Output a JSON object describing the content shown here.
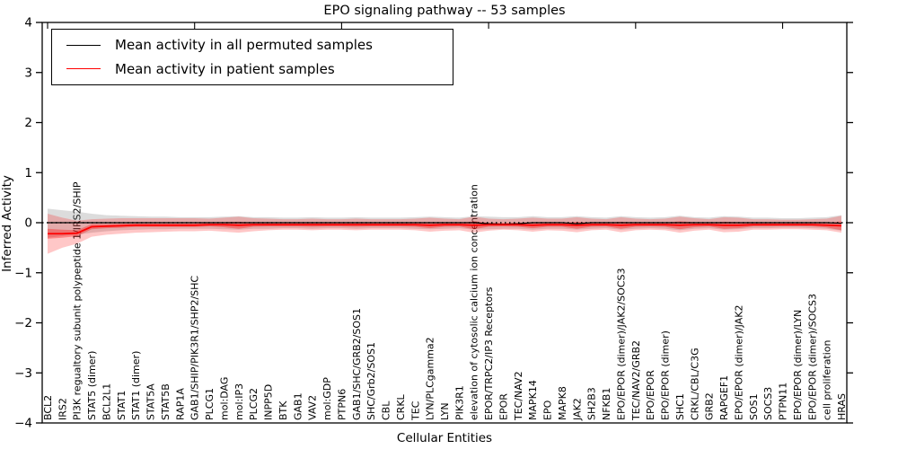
{
  "figure": {
    "title": "EPO signaling pathway -- 53 samples",
    "xlabel": "Cellular Entities",
    "ylabel": "Inferred Activity"
  },
  "legend": {
    "entries": [
      {
        "label": "Mean activity in all permuted samples",
        "color": "#000000"
      },
      {
        "label": "Mean activity in patient samples",
        "color": "#ff0000"
      }
    ]
  },
  "chart_data": {
    "type": "line",
    "title": "EPO signaling pathway -- 53 samples",
    "xlabel": "Cellular Entities",
    "ylabel": "Inferred Activity",
    "ylim": [
      -4,
      4
    ],
    "grid": false,
    "legend_position": "upper left",
    "yticks": [
      {
        "v": 4,
        "label": "4"
      },
      {
        "v": 3,
        "label": "3"
      },
      {
        "v": 2,
        "label": "2"
      },
      {
        "v": 1,
        "label": "1"
      },
      {
        "v": 0,
        "label": "0"
      },
      {
        "v": -1,
        "label": "−1"
      },
      {
        "v": -2,
        "label": "−2"
      },
      {
        "v": -3,
        "label": "−3"
      },
      {
        "v": -4,
        "label": "−4"
      }
    ],
    "categories": [
      "BCL2",
      "IRS2",
      "PI3K regualtory subunit polypeptide 1/IRS2/SHIP",
      "STAT5 (dimer)",
      "BCL2L1",
      "STAT1",
      "STAT1 (dimer)",
      "STAT5A",
      "STAT5B",
      "RAP1A",
      "GAB1/SHIP/PIK3R1/SHP2/SHC",
      "PLCG1",
      "mol:DAG",
      "mol:IP3",
      "PLCG2",
      "INPP5D",
      "BTK",
      "GAB1",
      "VAV2",
      "mol:GDP",
      "PTPN6",
      "GAB1/SHC/GRB2/SOS1",
      "SHC/Grb2/SOS1",
      "CBL",
      "CRKL",
      "TEC",
      "LYN/PLCgamma2",
      "LYN",
      "PIK3R1",
      "elevation of cytosolic calcium ion concentration",
      "EPOR/TRPC2/IP3 Receptors",
      "EPOR",
      "TEC/NAV2",
      "MAPK14",
      "EPO",
      "MAPK8",
      "JAK2",
      "SH2B3",
      "NFKB1",
      "EPO/EPOR (dimer)/JAK2/SOCS3",
      "TEC/NAV2/GRB2",
      "EPO/EPOR",
      "EPO/EPOR (dimer)",
      "SHC1",
      "CRKL/CBL/C3G",
      "GRB2",
      "RAPGEF1",
      "EPO/EPOR (dimer)/JAK2",
      "SOS1",
      "SOCS3",
      "PTPN11",
      "EPO/EPOR (dimer)/LYN",
      "EPO/EPOR (dimer)/SOCS3",
      "cell proliferation",
      "HRAS"
    ],
    "series": [
      {
        "name": "Mean activity in all permuted samples",
        "color": "#000000",
        "values": [
          0,
          0,
          0,
          0,
          0,
          0,
          0,
          0,
          0,
          0,
          0,
          0,
          0,
          0,
          0,
          0,
          0,
          0,
          0,
          0,
          0,
          0,
          0,
          0,
          0,
          0,
          0,
          0,
          0,
          0,
          -0.02,
          -0.03,
          -0.02,
          0,
          0,
          0,
          -0.02,
          0,
          0,
          0,
          0,
          0,
          0,
          0,
          0,
          0,
          0,
          0,
          0,
          0,
          0,
          0,
          0,
          0,
          -0.01
        ]
      },
      {
        "name": "Mean activity in patient samples",
        "color": "#ff0000",
        "values": [
          -0.22,
          -0.22,
          -0.21,
          -0.08,
          -0.07,
          -0.06,
          -0.05,
          -0.05,
          -0.05,
          -0.05,
          -0.05,
          -0.04,
          -0.04,
          -0.05,
          -0.04,
          -0.04,
          -0.04,
          -0.04,
          -0.04,
          -0.04,
          -0.04,
          -0.04,
          -0.04,
          -0.04,
          -0.04,
          -0.04,
          -0.05,
          -0.04,
          -0.04,
          -0.05,
          -0.04,
          -0.04,
          -0.04,
          -0.05,
          -0.04,
          -0.04,
          -0.05,
          -0.04,
          -0.04,
          -0.05,
          -0.04,
          -0.04,
          -0.04,
          -0.05,
          -0.04,
          -0.04,
          -0.05,
          -0.05,
          -0.04,
          -0.04,
          -0.04,
          -0.04,
          -0.04,
          -0.05,
          -0.06
        ]
      }
    ],
    "bands": [
      {
        "name": "permuted-samples-range",
        "color": "rgba(130,130,130,0.28)",
        "hi": [
          0.28,
          0.25,
          0.22,
          0.18,
          0.15,
          0.14,
          0.13,
          0.12,
          0.12,
          0.11,
          0.11,
          0.11,
          0.12,
          0.13,
          0.11,
          0.11,
          0.1,
          0.1,
          0.11,
          0.1,
          0.1,
          0.11,
          0.1,
          0.1,
          0.1,
          0.11,
          0.12,
          0.11,
          0.1,
          0.13,
          0.12,
          0.11,
          0.11,
          0.13,
          0.11,
          0.11,
          0.13,
          0.11,
          0.1,
          0.13,
          0.11,
          0.1,
          0.11,
          0.14,
          0.11,
          0.1,
          0.13,
          0.12,
          0.1,
          0.1,
          0.09,
          0.09,
          0.1,
          0.11,
          0.15
        ],
        "lo": [
          -0.3,
          -0.27,
          -0.24,
          -0.2,
          -0.17,
          -0.15,
          -0.14,
          -0.13,
          -0.13,
          -0.12,
          -0.12,
          -0.12,
          -0.13,
          -0.14,
          -0.12,
          -0.12,
          -0.11,
          -0.11,
          -0.12,
          -0.11,
          -0.11,
          -0.12,
          -0.11,
          -0.11,
          -0.11,
          -0.12,
          -0.13,
          -0.12,
          -0.11,
          -0.14,
          -0.13,
          -0.12,
          -0.12,
          -0.14,
          -0.12,
          -0.12,
          -0.14,
          -0.12,
          -0.11,
          -0.14,
          -0.12,
          -0.11,
          -0.12,
          -0.15,
          -0.12,
          -0.11,
          -0.14,
          -0.13,
          -0.11,
          -0.11,
          -0.1,
          -0.1,
          -0.11,
          -0.12,
          -0.16
        ]
      },
      {
        "name": "patient-samples-range",
        "color": "rgba(255,0,0,0.22)",
        "hi": [
          0.18,
          0.1,
          0.04,
          0.07,
          0.08,
          0.09,
          0.09,
          0.09,
          0.09,
          0.09,
          0.09,
          0.08,
          0.1,
          0.12,
          0.09,
          0.08,
          0.07,
          0.07,
          0.08,
          0.07,
          0.07,
          0.08,
          0.07,
          0.07,
          0.07,
          0.08,
          0.1,
          0.08,
          0.07,
          0.12,
          0.08,
          0.07,
          0.08,
          0.1,
          0.08,
          0.08,
          0.11,
          0.08,
          0.07,
          0.11,
          0.08,
          0.07,
          0.08,
          0.12,
          0.09,
          0.07,
          0.11,
          0.1,
          0.07,
          0.07,
          0.06,
          0.06,
          0.07,
          0.08,
          0.14
        ],
        "lo": [
          -0.62,
          -0.5,
          -0.42,
          -0.28,
          -0.24,
          -0.22,
          -0.2,
          -0.19,
          -0.18,
          -0.17,
          -0.17,
          -0.16,
          -0.18,
          -0.2,
          -0.17,
          -0.15,
          -0.14,
          -0.14,
          -0.15,
          -0.14,
          -0.14,
          -0.15,
          -0.14,
          -0.14,
          -0.14,
          -0.15,
          -0.18,
          -0.16,
          -0.15,
          -0.2,
          -0.16,
          -0.14,
          -0.15,
          -0.18,
          -0.15,
          -0.16,
          -0.19,
          -0.15,
          -0.14,
          -0.19,
          -0.15,
          -0.14,
          -0.15,
          -0.2,
          -0.16,
          -0.14,
          -0.19,
          -0.18,
          -0.14,
          -0.14,
          -0.13,
          -0.13,
          -0.14,
          -0.15,
          -0.2
        ]
      },
      {
        "name": "patient-samples-inner-range",
        "color": "rgba(255,0,0,0.32)",
        "hi": [
          -0.12,
          -0.14,
          -0.15,
          -0.03,
          -0.03,
          -0.02,
          -0.015,
          -0.015,
          -0.015,
          -0.015,
          -0.015,
          -0.005,
          0.01,
          0.02,
          0.0,
          -0.005,
          -0.005,
          -0.005,
          0.0,
          -0.005,
          -0.005,
          0.0,
          -0.005,
          -0.005,
          -0.005,
          0.0,
          0.01,
          0.0,
          -0.005,
          0.03,
          0.0,
          -0.005,
          0.0,
          0.01,
          0.0,
          0.0,
          0.02,
          0.0,
          -0.005,
          0.02,
          0.0,
          -0.005,
          0.0,
          0.03,
          0.01,
          -0.005,
          0.02,
          0.01,
          -0.005,
          -0.005,
          -0.01,
          -0.01,
          -0.005,
          -0.005,
          0.03
        ],
        "lo": [
          -0.32,
          -0.3,
          -0.27,
          -0.13,
          -0.11,
          -0.1,
          -0.085,
          -0.085,
          -0.085,
          -0.085,
          -0.085,
          -0.075,
          -0.09,
          -0.12,
          -0.08,
          -0.075,
          -0.075,
          -0.075,
          -0.08,
          -0.075,
          -0.075,
          -0.08,
          -0.075,
          -0.075,
          -0.075,
          -0.08,
          -0.11,
          -0.08,
          -0.075,
          -0.13,
          -0.08,
          -0.075,
          -0.08,
          -0.11,
          -0.08,
          -0.08,
          -0.12,
          -0.08,
          -0.075,
          -0.12,
          -0.08,
          -0.075,
          -0.08,
          -0.13,
          -0.09,
          -0.075,
          -0.12,
          -0.11,
          -0.075,
          -0.075,
          -0.07,
          -0.07,
          -0.075,
          -0.095,
          -0.15
        ]
      }
    ],
    "zero_line": 0
  }
}
